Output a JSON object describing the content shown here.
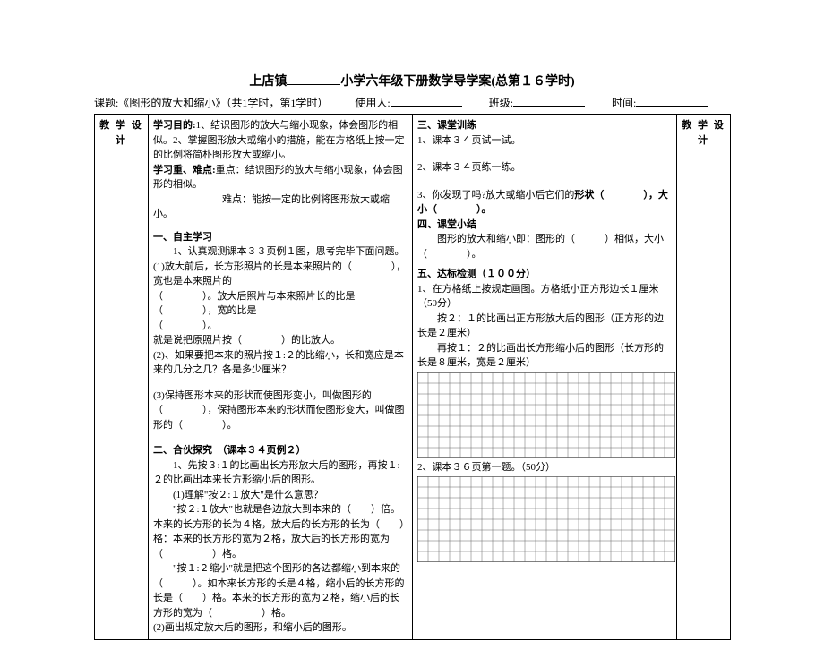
{
  "title_prefix": "上店镇",
  "title_suffix": "小学六年级下册数学导学案(总第１６学时)",
  "meta": {
    "topic_label": "课题:",
    "topic": "《图形的放大和缩小》（共1学时，第1学时）",
    "user_label": "使用人:",
    "class_label": "班级:",
    "time_label": "时间:"
  },
  "side_left": "教 学 设 计",
  "side_right": "教 学 设 计",
  "left": {
    "objective_label": "学习目的:",
    "objective": "1、结识图形的放大与缩小现象，体会图形的相似。2、掌握图形放大或缩小的措施，能在方格纸上按一定的比例将简朴图形放大或缩小。",
    "keypoint_label": "学习重、难点:",
    "keypoint1": "重点：结识图形的放大与缩小现象，体会图形的相似。",
    "keypoint2": "难点：能按一定的比例将图形放大或缩小。",
    "sec1": "一、自主学习",
    "s1_1": "1、认真观测课本３３页例１图，思考完毕下面问题。",
    "s1_2a": "(1)放大前后，长方形照片的长是本来照片的（　　　　），宽也是本来照片的",
    "s1_2b": "（　　　　）。放大后照片与本来照片长的比是（　　　　），宽的比是",
    "s1_2c": "（　　　　）。",
    "s1_3": "就是说把原照片按（　　　　）的比放大。",
    "s1_4": "(2)、如果要把本来的照片按１:２的比缩小，长和宽应是本来的几分之几？各是多少厘米？",
    "s1_5": "(3)保持图形本来的形状而使图形变小，叫做图形的（　　　　），保持图形本来的形状而使图形变大，叫做图形的（　　　　）。",
    "sec2": "二、合伙探究　（课本３４页例２）",
    "s2_0": "1、先按３:１的比画出长方形放大后的图形，再按１:２的比画出本来长方形缩小后的图形。",
    "s2_1": "(1)理解\"按２:１放大\"是什么意思？",
    "s2_2": "\"按２:１放大\"也就是各边放大到本来的（　　）倍。本来的长方形的长为４格，放大后的长方形的长为（　　）格：本来的长方形的宽为２格，放大后的长方形的宽为（　　　　　）格。",
    "s2_3": "\"按１:２缩小\"就是把这个图形的各边都缩小到本来的（　　　）。如本来长方形的长是４格，缩小后的长方形的长是（　　）格。本来的长方形的宽为２格，缩小后的长方形的宽为（　　　　　）格。",
    "s2_4": "(2)画出规定放大后的图形，和缩小后的图形。"
  },
  "right": {
    "sec3": "三、课堂训练",
    "r3_1": "1、课本３４页试一试。",
    "r3_2": "2、课本３４页练一练。",
    "r3_3a": "3、你发现了吗?放大或缩小后它们的",
    "r3_3b": "形状（　　　　），大小（　　　　）。",
    "sec4": "四、课堂小结",
    "r4_1": "图形的放大和缩小即：图形的（　　　）相似，大小（　　　　）。",
    "sec5": "五、达标检测（１００分）",
    "r5_1": "1、在方格纸上按规定画图。方格纸小正方形边长１厘米（50分）",
    "r5_2": "按２：１的比画出正方形放大后的图形（正方形的边长是２厘米）",
    "r5_3": "再按１：２的比画出长方形缩小后的图形（长方形的长是８厘米，宽是２厘米）",
    "r5_4": "2、课本３６页第一题。（50分）",
    "grid1": {
      "rows": 8,
      "cols": 24,
      "cell": 12
    },
    "grid2": {
      "rows": 8,
      "cols": 24,
      "cell": 12
    }
  }
}
